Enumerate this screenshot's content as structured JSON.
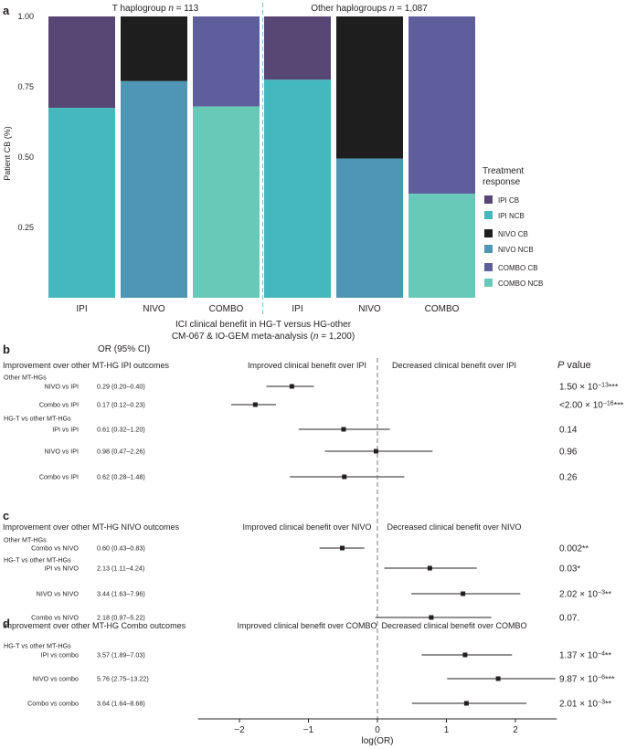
{
  "chart_data": [
    {
      "panel": "a",
      "type": "bar",
      "subtype": "stacked-proportion",
      "groups": [
        {
          "title_prefix": "T haplogroup ",
          "n_label": "n",
          "n_value": " = 113"
        },
        {
          "title_prefix": "Other haplogroups ",
          "n_label": "n",
          "n_value": " = 1,087"
        }
      ],
      "categories": [
        "IPI",
        "NIVO",
        "COMBO",
        "IPI",
        "NIVO",
        "COMBO"
      ],
      "stacks": [
        {
          "ncb_key": "IPI NCB",
          "cb_key": "IPI CB",
          "ncb": 0.675
        },
        {
          "ncb_key": "NIVO NCB",
          "cb_key": "NIVO CB",
          "ncb": 0.77
        },
        {
          "ncb_key": "COMBO NCB",
          "cb_key": "COMBO CB",
          "ncb": 0.68
        },
        {
          "ncb_key": "IPI NCB",
          "cb_key": "IPI CB",
          "ncb": 0.775
        },
        {
          "ncb_key": "NIVO NCB",
          "cb_key": "NIVO CB",
          "ncb": 0.495
        },
        {
          "ncb_key": "COMBO NCB",
          "cb_key": "COMBO CB",
          "ncb": 0.37
        }
      ],
      "ylabel": "Patient CB (%)",
      "ylim": [
        0,
        1
      ],
      "yticks": [
        "0.25",
        "0.50",
        "0.75",
        "1.00"
      ],
      "ytick_values": [
        0.25,
        0.5,
        0.75,
        1.0
      ],
      "xlabel_line1": "ICI clinical benefit in HG-T versus HG-other",
      "xlabel_line2_prefix": "CM-067 & IO-GEM meta-analysis (",
      "xlabel_line2_n": "n",
      "xlabel_line2_suffix": " = 1,200)",
      "legend_title_line1": "Treatment",
      "legend_title_line2": "response",
      "legend": [
        {
          "label": "IPI CB",
          "color": "#574774"
        },
        {
          "label": "IPI NCB",
          "color": "#45b8bd"
        },
        {
          "label": "NIVO CB",
          "color": "#1e1e1e"
        },
        {
          "label": "NIVO NCB",
          "color": "#4f96b6"
        },
        {
          "label": "COMBO CB",
          "color": "#5f5e9c"
        },
        {
          "label": "COMBO NCB",
          "color": "#69c9b8"
        }
      ],
      "legend_placement": "right"
    },
    {
      "panels": "b-d",
      "type": "scatter",
      "subtype": "forest",
      "xlabel": "log(OR)",
      "xlim": [
        -2.6,
        2.6
      ],
      "xticks": [
        "−2",
        "−1",
        "0",
        "1",
        "2"
      ],
      "xtick_values": [
        -2,
        -1,
        0,
        1,
        2
      ],
      "or_header": "OR (95% CI)",
      "pvalue_header_italic": "P",
      "pvalue_header_rest": " value",
      "sections": [
        {
          "letter": "b",
          "title": "Improvement over other MT-HG IPI outcomes",
          "left_note": "Improved clinical benefit over IPI",
          "right_note": "Decreased clinical benefit over IPI",
          "rows": [
            {
              "group": "Other MT-HGs",
              "label": "NIVO vs IPI",
              "or": "0.29 (0.20–0.40)",
              "est": -1.24,
              "lo": -1.61,
              "hi": -0.92,
              "p_base": "1.50 × 10",
              "p_exp": "−13",
              "p_stars": "***"
            },
            {
              "group": "",
              "label": "Combo vs IPI",
              "or": "0.17 (0.12–0.23)",
              "est": -1.77,
              "lo": -2.12,
              "hi": -1.47,
              "p_base": "<2.00 × 10",
              "p_exp": "−16",
              "p_stars": "***"
            },
            {
              "group": "HG-T vs other MT-HGs",
              "label": "IPI vs IPI",
              "or": "0.61 (0.32–1.20)",
              "est": -0.49,
              "lo": -1.14,
              "hi": 0.18,
              "p_base": "0.14",
              "p_exp": "",
              "p_stars": ""
            },
            {
              "group": "",
              "label": "NIVO vs IPI",
              "or": "0.98 (0.47–2.26)",
              "est": -0.02,
              "lo": -0.76,
              "hi": 0.8,
              "p_base": "0.96",
              "p_exp": "",
              "p_stars": ""
            },
            {
              "group": "",
              "label": "Combo vs IPI",
              "or": "0.62 (0.28–1.48)",
              "est": -0.48,
              "lo": -1.27,
              "hi": 0.39,
              "p_base": "0.26",
              "p_exp": "",
              "p_stars": ""
            }
          ]
        },
        {
          "letter": "c",
          "title": "Improvement over other MT-HG NIVO outcomes",
          "left_note": "Improved clinical benefit over NIVO",
          "right_note": "Decreased clinical benefit over NIVO",
          "rows": [
            {
              "group": "Other MT-HGs",
              "label": "Combo vs NIVO",
              "or": "0.60 (0.43–0.83)",
              "est": -0.51,
              "lo": -0.84,
              "hi": -0.19,
              "p_base": "0.002",
              "p_exp": "",
              "p_stars": "**"
            },
            {
              "group": "HG-T vs other MT-HGs",
              "label": "IPI vs NIVO",
              "or": "2.13 (1.11–4.24)",
              "est": 0.76,
              "lo": 0.1,
              "hi": 1.44,
              "p_base": "0.03",
              "p_exp": "",
              "p_stars": "*"
            },
            {
              "group": "",
              "label": "NIVO vs NIVO",
              "or": "3.44 (1.63–7.96)",
              "est": 1.24,
              "lo": 0.49,
              "hi": 2.07,
              "p_base": "2.02 × 10",
              "p_exp": "−3",
              "p_stars": "**"
            },
            {
              "group": "",
              "label": "Combo vs NIVO",
              "or": "2.18 (0.97–5.22)",
              "est": 0.78,
              "lo": -0.03,
              "hi": 1.65,
              "p_base": "0.07.",
              "p_exp": "",
              "p_stars": ""
            }
          ]
        },
        {
          "letter": "d",
          "title": "Improvement over other MT-HG Combo outcomes",
          "left_note": "Improved clinical benefit over COMBO",
          "right_note": "Decreased clinical benefit over COMBO",
          "rows": [
            {
              "group": "HG-T vs other MT-HGs",
              "label": "IPI vs combo",
              "or": "3.57 (1.89–7.03)",
              "est": 1.27,
              "lo": 0.64,
              "hi": 1.95,
              "p_base": "1.37 × 10",
              "p_exp": "−4",
              "p_stars": "**"
            },
            {
              "group": "",
              "label": "NIVO vs combo",
              "or": "5.76 (2.75–13.22)",
              "est": 1.75,
              "lo": 1.01,
              "hi": 2.58,
              "p_base": "9.87 × 10",
              "p_exp": "−6",
              "p_stars": "***"
            },
            {
              "group": "",
              "label": "Combo vs combo",
              "or": "3.64 (1.64–8.68)",
              "est": 1.29,
              "lo": 0.5,
              "hi": 2.16,
              "p_base": "2.01 × 10",
              "p_exp": "−3",
              "p_stars": "**"
            }
          ]
        }
      ]
    }
  ]
}
